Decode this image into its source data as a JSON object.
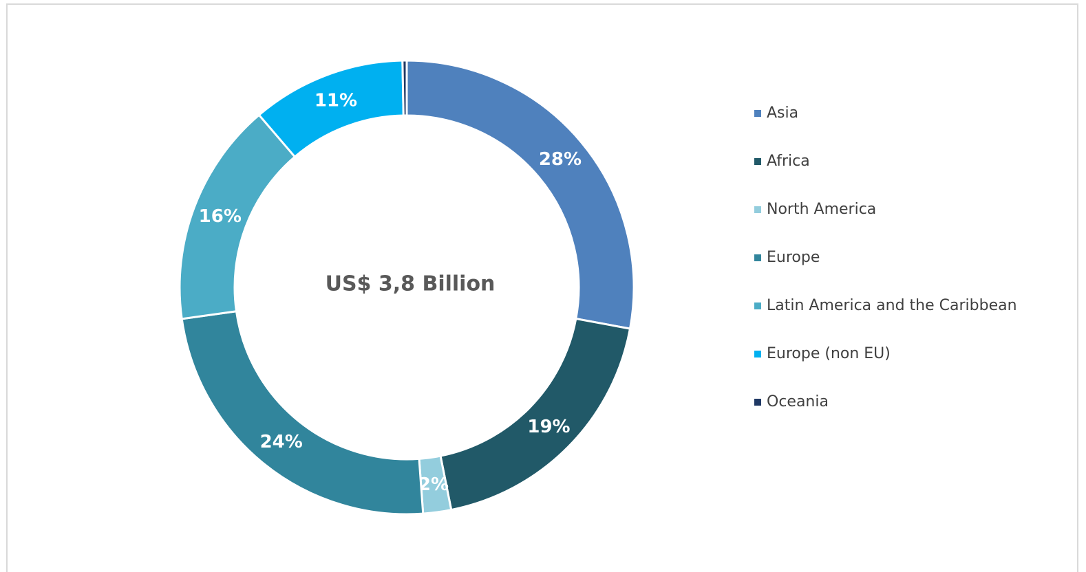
{
  "chart_data": {
    "type": "donut",
    "center_label": "US$ 3,8 Billion",
    "categories": [
      "Asia",
      "Africa",
      "North America",
      "Europe",
      "Latin America and the Caribbean",
      "Europe (non EU)",
      "Oceania"
    ],
    "values": [
      28,
      19,
      2,
      24,
      16,
      11,
      0.3
    ],
    "value_labels": [
      "28%",
      "19%",
      "2%",
      "24%",
      "16%",
      "11%",
      null
    ],
    "colors": [
      "#4f81bd",
      "#215968",
      "#93cddd",
      "#31859c",
      "#4bacc6",
      "#00b0f0",
      "#1f3864"
    ],
    "legend": "right"
  }
}
